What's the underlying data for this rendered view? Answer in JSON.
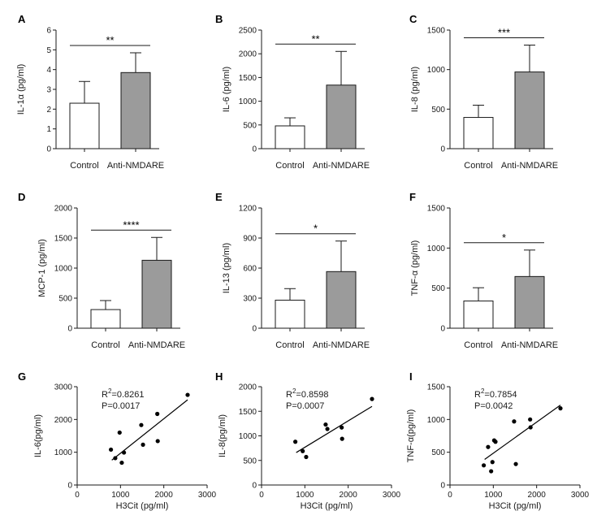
{
  "colors": {
    "control": "#ffffff",
    "treated": "#9b9b9b",
    "stroke": "#1a1a1a"
  },
  "chart_data": [
    {
      "type": "bar",
      "panel": "A",
      "categories": [
        "Control",
        "Anti-NMDARE"
      ],
      "values": [
        2.3,
        3.85
      ],
      "errors": [
        1.1,
        1.0
      ],
      "ylabel": "IL-1α (pg/ml)",
      "ylim": [
        0,
        6
      ],
      "yticks": [
        0,
        1,
        2,
        3,
        4,
        5,
        6
      ],
      "significance": "**"
    },
    {
      "type": "bar",
      "panel": "B",
      "categories": [
        "Control",
        "Anti-NMDARE"
      ],
      "values": [
        480,
        1340
      ],
      "errors": [
        170,
        710
      ],
      "ylabel": "IL-6 (pg/ml)",
      "ylim": [
        0,
        2500
      ],
      "yticks": [
        0,
        500,
        1000,
        1500,
        2000,
        2500
      ],
      "significance": "**"
    },
    {
      "type": "bar",
      "panel": "C",
      "categories": [
        "Control",
        "Anti-NMDARE"
      ],
      "values": [
        395,
        970
      ],
      "errors": [
        155,
        340
      ],
      "ylabel": "IL-8 (pg/ml)",
      "ylim": [
        0,
        1500
      ],
      "yticks": [
        0,
        500,
        1000,
        1500
      ],
      "significance": "***"
    },
    {
      "type": "bar",
      "panel": "D",
      "categories": [
        "Control",
        "Anti-NMDARE"
      ],
      "values": [
        310,
        1130
      ],
      "errors": [
        150,
        380
      ],
      "ylabel": "MCP-1 (pg/ml)",
      "ylim": [
        0,
        2000
      ],
      "yticks": [
        0,
        500,
        1000,
        1500,
        2000
      ],
      "significance": "****"
    },
    {
      "type": "bar",
      "panel": "E",
      "categories": [
        "Control",
        "Anti-NMDARE"
      ],
      "values": [
        280,
        565
      ],
      "errors": [
        115,
        305
      ],
      "ylabel": "IL-13 (pg/ml)",
      "ylim": [
        0,
        1200
      ],
      "yticks": [
        0,
        300,
        600,
        900,
        1200
      ],
      "significance": "*"
    },
    {
      "type": "bar",
      "panel": "F",
      "categories": [
        "Control",
        "Anti-NMDARE"
      ],
      "values": [
        340,
        645
      ],
      "errors": [
        165,
        330
      ],
      "ylabel": "TNF-α (pg/ml)",
      "ylim": [
        0,
        1500
      ],
      "yticks": [
        0,
        500,
        1000,
        1500
      ],
      "significance": "*"
    },
    {
      "type": "scatter",
      "panel": "G",
      "x": [
        780,
        880,
        980,
        1030,
        1080,
        1480,
        1520,
        1850,
        1860,
        2550
      ],
      "y": [
        1080,
        820,
        1600,
        680,
        990,
        1830,
        1230,
        2170,
        1340,
        2750
      ],
      "fit": {
        "x": [
          800,
          2550
        ],
        "y": [
          760,
          2600
        ]
      },
      "r2": "=0.8261",
      "p": "P=0.0017",
      "xlabel": "H3Cit (pg/ml)",
      "ylabel": "IL-6(pg/ml)",
      "xlim": [
        0,
        3000
      ],
      "ylim": [
        0,
        3000
      ],
      "xticks": [
        0,
        1000,
        2000,
        3000
      ],
      "yticks": [
        0,
        1000,
        2000,
        3000
      ]
    },
    {
      "type": "scatter",
      "panel": "H",
      "x": [
        780,
        950,
        1030,
        1480,
        1520,
        1850,
        1860,
        2550
      ],
      "y": [
        880,
        690,
        570,
        1230,
        1140,
        1170,
        940,
        1750
      ],
      "fit": {
        "x": [
          800,
          2550
        ],
        "y": [
          660,
          1600
        ]
      },
      "r2": "=0.8598",
      "p": "P=0.0007",
      "xlabel": "H3Cit (pg/ml)",
      "ylabel": "IL-8(pg/ml)",
      "xlim": [
        0,
        3000
      ],
      "ylim": [
        0,
        2000
      ],
      "xticks": [
        0,
        1000,
        2000,
        3000
      ],
      "yticks": [
        0,
        500,
        1000,
        1500,
        2000
      ]
    },
    {
      "type": "scatter",
      "panel": "I",
      "x": [
        780,
        880,
        950,
        980,
        1020,
        1050,
        1480,
        1520,
        1850,
        1860,
        2550
      ],
      "y": [
        300,
        580,
        210,
        350,
        680,
        660,
        970,
        320,
        1000,
        880,
        1170
      ],
      "fit": {
        "x": [
          800,
          2550
        ],
        "y": [
          390,
          1220
        ]
      },
      "r2": "=0.7854",
      "p": "P=0.0042",
      "xlabel": "H3Cit (pg/ml)",
      "ylabel": "TNF-α(pg/ml)",
      "xlim": [
        0,
        3000
      ],
      "ylim": [
        0,
        1500
      ],
      "xticks": [
        0,
        1000,
        2000,
        3000
      ],
      "yticks": [
        0,
        500,
        1000,
        1500
      ]
    }
  ]
}
